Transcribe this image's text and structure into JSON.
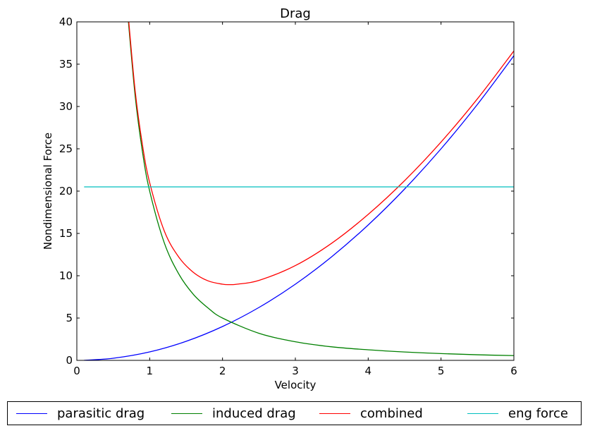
{
  "chart_data": {
    "type": "line",
    "title": "Drag",
    "xlabel": "Velocity",
    "ylabel": "Nondimensional Force",
    "xlim": [
      0,
      6
    ],
    "ylim": [
      0,
      40
    ],
    "xticks": [
      0,
      1,
      2,
      3,
      4,
      5,
      6
    ],
    "yticks": [
      0,
      5,
      10,
      15,
      20,
      25,
      30,
      35,
      40
    ],
    "legend_position": "below-plot",
    "grid": false,
    "series": [
      {
        "name": "parasitic drag",
        "color": "#0000ff",
        "x": [
          0.1,
          0.5,
          1.0,
          1.5,
          2.0,
          2.5,
          3.0,
          3.5,
          4.0,
          4.5,
          5.0,
          5.5,
          6.0
        ],
        "y": [
          0.01,
          0.25,
          1.0,
          2.25,
          4.0,
          6.25,
          9.0,
          12.25,
          16.0,
          20.25,
          25.0,
          30.25,
          36.0
        ]
      },
      {
        "name": "induced drag",
        "color": "#008000",
        "x": [
          0.7,
          0.8,
          0.9,
          1.0,
          1.2,
          1.4,
          1.6,
          1.8,
          2.0,
          2.5,
          3.0,
          3.5,
          4.0,
          4.5,
          5.0,
          5.5,
          6.0
        ],
        "y": [
          40.8,
          31.3,
          24.7,
          20.0,
          13.9,
          10.2,
          7.8,
          6.2,
          5.0,
          3.2,
          2.2,
          1.6,
          1.25,
          0.99,
          0.8,
          0.66,
          0.56
        ]
      },
      {
        "name": "combined",
        "color": "#ff0000",
        "x": [
          0.7,
          0.8,
          0.9,
          1.0,
          1.2,
          1.4,
          1.6,
          1.8,
          2.0,
          2.1,
          2.2,
          2.5,
          3.0,
          3.5,
          4.0,
          4.5,
          5.0,
          5.5,
          6.0
        ],
        "y": [
          41.3,
          31.9,
          25.5,
          21.0,
          15.3,
          12.2,
          10.4,
          9.4,
          9.0,
          8.95,
          9.0,
          9.45,
          11.2,
          13.85,
          17.25,
          21.24,
          25.8,
          30.91,
          36.56
        ]
      },
      {
        "name": "eng force",
        "color": "#00bfbf",
        "x": [
          0.1,
          6.0
        ],
        "y": [
          20.5,
          20.5
        ]
      }
    ]
  }
}
